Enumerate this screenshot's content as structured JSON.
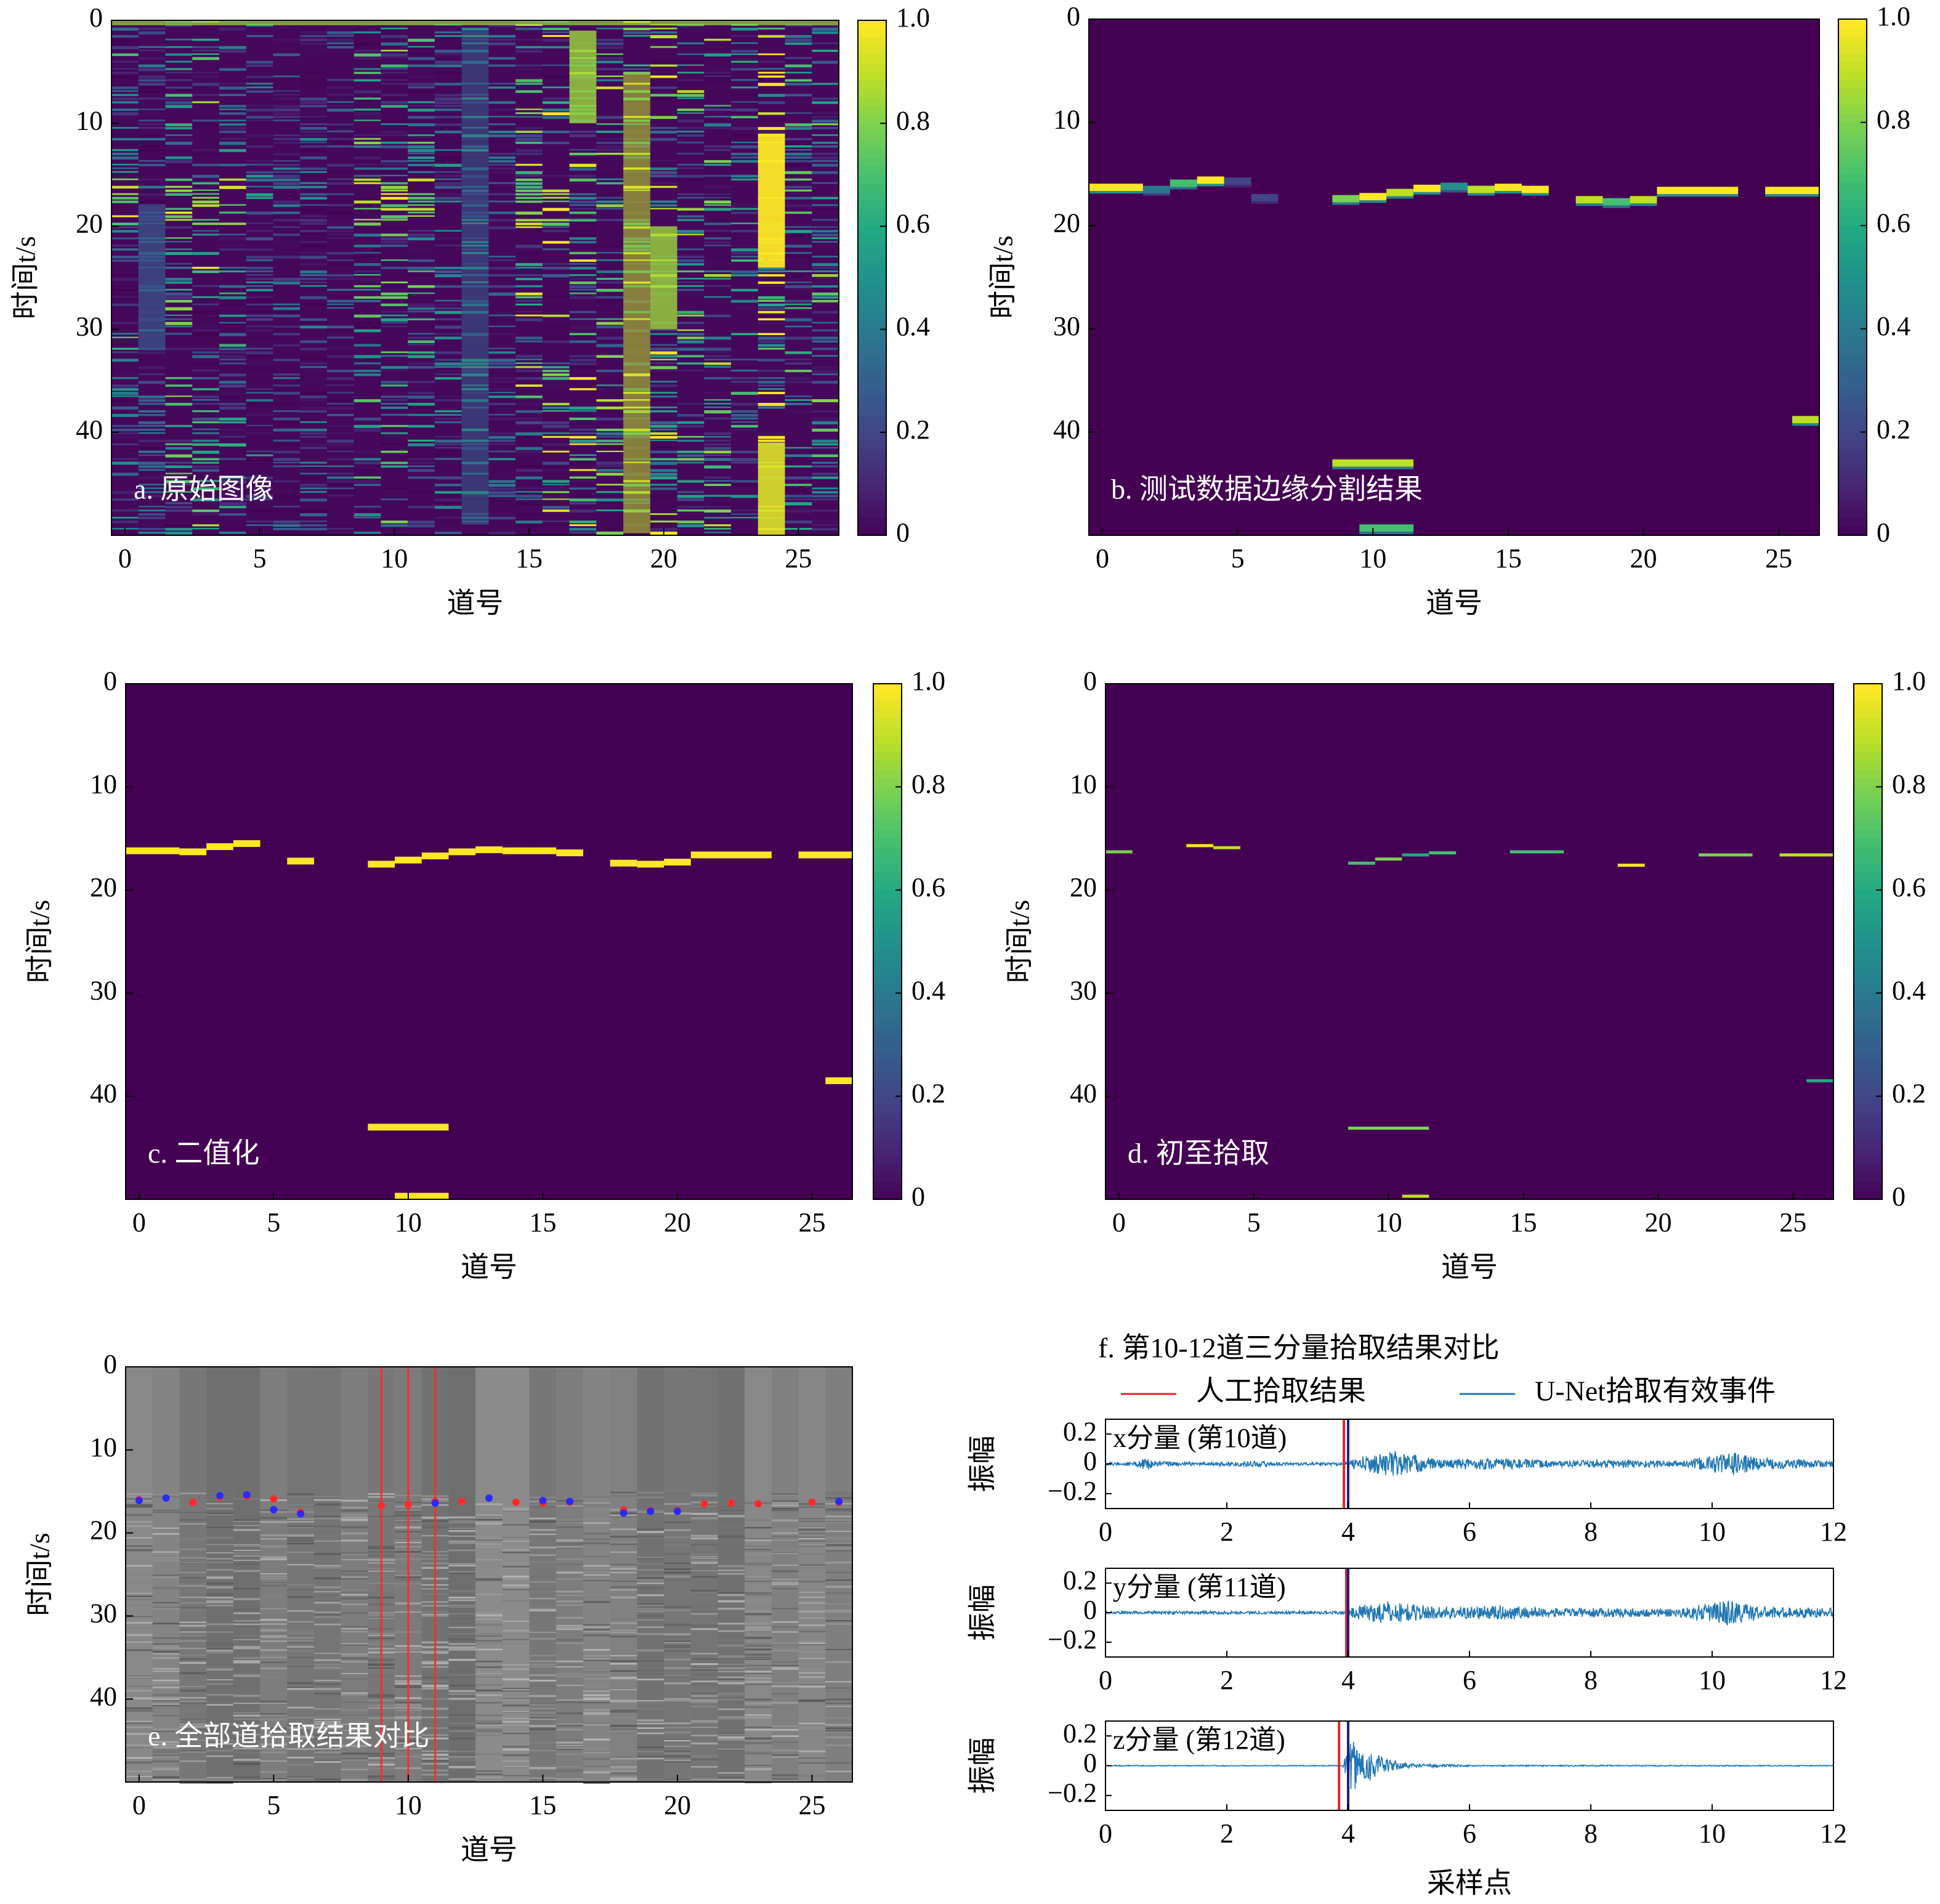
{
  "chart_data": [
    {
      "id": "a",
      "type": "heatmap",
      "panel_label": "a. 原始图像",
      "xlabel": "道号",
      "ylabel": "时间t/s",
      "xlim": [
        -0.5,
        26.5
      ],
      "ylim": [
        50,
        0
      ],
      "xticks": [
        "0",
        "5",
        "10",
        "15",
        "20",
        "25"
      ],
      "yticks": [
        "0",
        "10",
        "20",
        "30",
        "40"
      ],
      "colorbar": {
        "ticks": [
          "0",
          "0.2",
          "0.4",
          "0.6",
          "0.8",
          "1.0"
        ],
        "range": [
          0,
          1
        ],
        "colormap": "viridis"
      },
      "note_visible": "dense normalized waveform amplitudes per trace"
    },
    {
      "id": "b",
      "type": "heatmap",
      "panel_label": "b. 测试数据边缘分割结果",
      "xlabel": "道号",
      "ylabel": "时间t/s",
      "xlim": [
        -0.5,
        26.5
      ],
      "ylim": [
        50,
        0
      ],
      "xticks": [
        "0",
        "5",
        "10",
        "15",
        "20",
        "25"
      ],
      "yticks": [
        "0",
        "10",
        "20",
        "30",
        "40"
      ],
      "colorbar": {
        "ticks": [
          "0",
          "0.2",
          "0.4",
          "0.6",
          "0.8",
          "1.0"
        ],
        "range": [
          0,
          1
        ],
        "colormap": "viridis"
      },
      "segments": [
        {
          "x0": -0.5,
          "x1": 1.5,
          "t": 16.3,
          "v": 1.0
        },
        {
          "x0": 1.5,
          "x1": 2.5,
          "t": 16.5,
          "v": 0.4
        },
        {
          "x0": 2.5,
          "x1": 3.5,
          "t": 15.9,
          "v": 0.7
        },
        {
          "x0": 3.5,
          "x1": 4.5,
          "t": 15.6,
          "v": 1.0
        },
        {
          "x0": 4.5,
          "x1": 5.5,
          "t": 15.7,
          "v": 0.2
        },
        {
          "x0": 5.5,
          "x1": 6.5,
          "t": 17.3,
          "v": 0.2
        },
        {
          "x0": 8.5,
          "x1": 9.5,
          "t": 17.4,
          "v": 0.8
        },
        {
          "x0": 9.5,
          "x1": 10.5,
          "t": 17.2,
          "v": 1.0
        },
        {
          "x0": 10.5,
          "x1": 11.5,
          "t": 16.8,
          "v": 0.9
        },
        {
          "x0": 11.5,
          "x1": 12.5,
          "t": 16.4,
          "v": 1.0
        },
        {
          "x0": 12.5,
          "x1": 13.5,
          "t": 16.2,
          "v": 0.5
        },
        {
          "x0": 13.5,
          "x1": 14.5,
          "t": 16.5,
          "v": 0.9
        },
        {
          "x0": 14.5,
          "x1": 15.5,
          "t": 16.3,
          "v": 1.0
        },
        {
          "x0": 15.5,
          "x1": 16.5,
          "t": 16.5,
          "v": 1.0
        },
        {
          "x0": 17.5,
          "x1": 18.5,
          "t": 17.5,
          "v": 0.9
        },
        {
          "x0": 18.5,
          "x1": 19.5,
          "t": 17.7,
          "v": 0.7
        },
        {
          "x0": 19.5,
          "x1": 20.5,
          "t": 17.5,
          "v": 0.9
        },
        {
          "x0": 20.5,
          "x1": 23.5,
          "t": 16.6,
          "v": 1.0
        },
        {
          "x0": 24.5,
          "x1": 26.5,
          "t": 16.6,
          "v": 1.0
        },
        {
          "x0": 8.5,
          "x1": 11.5,
          "t": 43.0,
          "v": 0.9
        },
        {
          "x0": 9.5,
          "x1": 11.5,
          "t": 49.3,
          "v": 0.7
        },
        {
          "x0": 25.5,
          "x1": 26.5,
          "t": 38.8,
          "v": 0.9
        }
      ]
    },
    {
      "id": "c",
      "type": "heatmap",
      "panel_label": "c. 二值化",
      "xlabel": "道号",
      "ylabel": "时间t/s",
      "xlim": [
        -0.5,
        26.5
      ],
      "ylim": [
        50,
        0
      ],
      "xticks": [
        "0",
        "5",
        "10",
        "15",
        "20",
        "25"
      ],
      "yticks": [
        "0",
        "10",
        "20",
        "30",
        "40"
      ],
      "colorbar": {
        "ticks": [
          "0",
          "0.2",
          "0.4",
          "0.6",
          "0.8",
          "1.0"
        ],
        "range": [
          0,
          1
        ],
        "colormap": "viridis"
      },
      "segments": [
        {
          "x0": -0.5,
          "x1": 1.5,
          "t": 16.2,
          "v": 1
        },
        {
          "x0": 1.5,
          "x1": 2.5,
          "t": 16.3,
          "v": 1
        },
        {
          "x0": 2.5,
          "x1": 3.5,
          "t": 15.8,
          "v": 1
        },
        {
          "x0": 3.5,
          "x1": 4.5,
          "t": 15.5,
          "v": 1
        },
        {
          "x0": 5.5,
          "x1": 6.5,
          "t": 17.2,
          "v": 1
        },
        {
          "x0": 8.5,
          "x1": 9.5,
          "t": 17.5,
          "v": 1
        },
        {
          "x0": 9.5,
          "x1": 10.5,
          "t": 17.1,
          "v": 1
        },
        {
          "x0": 10.5,
          "x1": 11.5,
          "t": 16.7,
          "v": 1
        },
        {
          "x0": 11.5,
          "x1": 12.5,
          "t": 16.3,
          "v": 1
        },
        {
          "x0": 12.5,
          "x1": 13.5,
          "t": 16.1,
          "v": 1
        },
        {
          "x0": 13.5,
          "x1": 14.5,
          "t": 16.2,
          "v": 1
        },
        {
          "x0": 14.5,
          "x1": 15.5,
          "t": 16.2,
          "v": 1
        },
        {
          "x0": 15.5,
          "x1": 16.5,
          "t": 16.4,
          "v": 1
        },
        {
          "x0": 17.5,
          "x1": 18.5,
          "t": 17.4,
          "v": 1
        },
        {
          "x0": 18.5,
          "x1": 19.5,
          "t": 17.5,
          "v": 1
        },
        {
          "x0": 19.5,
          "x1": 20.5,
          "t": 17.3,
          "v": 1
        },
        {
          "x0": 20.5,
          "x1": 23.5,
          "t": 16.6,
          "v": 1
        },
        {
          "x0": 24.5,
          "x1": 26.5,
          "t": 16.6,
          "v": 1
        },
        {
          "x0": 8.5,
          "x1": 11.5,
          "t": 43.0,
          "v": 1
        },
        {
          "x0": 9.5,
          "x1": 11.5,
          "t": 49.7,
          "v": 1
        },
        {
          "x0": 25.5,
          "x1": 26.5,
          "t": 38.5,
          "v": 1
        }
      ]
    },
    {
      "id": "d",
      "type": "heatmap",
      "panel_label": "d. 初至拾取",
      "xlabel": "道号",
      "ylabel": "时间t/s",
      "xlim": [
        -0.5,
        26.5
      ],
      "ylim": [
        50,
        0
      ],
      "xticks": [
        "0",
        "5",
        "10",
        "15",
        "20",
        "25"
      ],
      "yticks": [
        "0",
        "10",
        "20",
        "30",
        "40"
      ],
      "colorbar": {
        "ticks": [
          "0",
          "0.2",
          "0.4",
          "0.6",
          "0.8",
          "1.0"
        ],
        "range": [
          0,
          1
        ],
        "colormap": "viridis"
      },
      "segments": [
        {
          "x0": -0.5,
          "x1": 0.5,
          "t": 16.3,
          "v": 0.8
        },
        {
          "x0": 2.5,
          "x1": 3.5,
          "t": 15.7,
          "v": 1.0
        },
        {
          "x0": 3.5,
          "x1": 4.5,
          "t": 15.9,
          "v": 0.9
        },
        {
          "x0": 8.5,
          "x1": 9.5,
          "t": 17.4,
          "v": 0.7
        },
        {
          "x0": 9.5,
          "x1": 10.5,
          "t": 17.0,
          "v": 0.8
        },
        {
          "x0": 10.5,
          "x1": 11.5,
          "t": 16.6,
          "v": 0.6
        },
        {
          "x0": 11.5,
          "x1": 12.5,
          "t": 16.4,
          "v": 0.7
        },
        {
          "x0": 14.5,
          "x1": 16.5,
          "t": 16.3,
          "v": 0.7
        },
        {
          "x0": 18.5,
          "x1": 19.5,
          "t": 17.6,
          "v": 1.0
        },
        {
          "x0": 21.5,
          "x1": 23.5,
          "t": 16.6,
          "v": 0.8
        },
        {
          "x0": 24.5,
          "x1": 26.5,
          "t": 16.6,
          "v": 0.9
        },
        {
          "x0": 8.5,
          "x1": 11.5,
          "t": 43.1,
          "v": 0.8
        },
        {
          "x0": 10.5,
          "x1": 11.5,
          "t": 49.7,
          "v": 0.9
        },
        {
          "x0": 25.5,
          "x1": 26.5,
          "t": 38.5,
          "v": 0.6
        }
      ]
    },
    {
      "id": "e",
      "type": "scatter",
      "panel_label": "e. 全部道拾取结果对比",
      "xlabel": "道号",
      "ylabel": "时间t/s",
      "xlim": [
        -0.5,
        26.5
      ],
      "ylim": [
        50,
        0
      ],
      "xticks": [
        "0",
        "5",
        "10",
        "15",
        "20",
        "25"
      ],
      "yticks": [
        "0",
        "10",
        "20",
        "30",
        "40"
      ],
      "background": "grayscale seismic section",
      "vertical_lines": [
        9,
        10,
        11
      ],
      "series": [
        {
          "color": "#ff2a2a",
          "x": [
            0,
            2,
            3,
            4,
            5,
            6,
            9,
            10,
            11,
            12,
            14,
            15,
            16,
            18,
            19,
            20,
            21,
            22,
            23,
            25,
            26
          ],
          "y": [
            16.0,
            16.3,
            15.7,
            15.6,
            15.9,
            17.5,
            16.7,
            16.6,
            16.2,
            16.2,
            16.3,
            16.4,
            16.3,
            17.2,
            17.3,
            17.3,
            16.5,
            16.4,
            16.5,
            16.3,
            16.3
          ]
        },
        {
          "color": "#2a2aff",
          "x": [
            0,
            1,
            3,
            4,
            5,
            6,
            11,
            13,
            15,
            16,
            18,
            19,
            20,
            26
          ],
          "y": [
            16.1,
            15.8,
            15.5,
            15.4,
            17.2,
            17.7,
            16.4,
            15.8,
            16.1,
            16.2,
            17.6,
            17.4,
            17.4,
            16.2
          ]
        }
      ]
    },
    {
      "id": "f",
      "type": "line",
      "title": "f. 第10-12道三分量拾取结果对比",
      "legend": [
        {
          "label": "人工拾取结果",
          "color": "#e8202a"
        },
        {
          "label": "U-Net拾取有效事件",
          "color": "#1f77b4"
        }
      ],
      "xlabel": "采样点",
      "subplots": [
        {
          "label": "x分量 (第10道)",
          "ylabel": "振幅",
          "xlim": [
            0,
            12
          ],
          "ylim": [
            -0.3,
            0.3
          ],
          "xticks": [
            "0",
            "2",
            "4",
            "6",
            "8",
            "10",
            "12"
          ],
          "yticks": [
            "0.2",
            "0",
            "−0.2"
          ],
          "manual_pick": 3.93,
          "unet_pick": 4.0,
          "envelope": [
            [
              0,
              0.01
            ],
            [
              0.5,
              0.012
            ],
            [
              0.65,
              0.05
            ],
            [
              0.8,
              0.02
            ],
            [
              1.5,
              0.01
            ],
            [
              2.5,
              0.02
            ],
            [
              3,
              0.01
            ],
            [
              4,
              0.01
            ],
            [
              4.1,
              0.04
            ],
            [
              4.8,
              0.09
            ],
            [
              5.5,
              0.03
            ],
            [
              6.5,
              0.04
            ],
            [
              7.5,
              0.02
            ],
            [
              8.5,
              0.03
            ],
            [
              9.5,
              0.02
            ],
            [
              10.3,
              0.08
            ],
            [
              10.8,
              0.04
            ],
            [
              12,
              0.02
            ]
          ]
        },
        {
          "label": "y分量 (第11道)",
          "ylabel": "振幅",
          "xlim": [
            0,
            12
          ],
          "ylim": [
            -0.3,
            0.3
          ],
          "xticks": [
            "0",
            "2",
            "4",
            "6",
            "8",
            "10",
            "12"
          ],
          "yticks": [
            "0.2",
            "0",
            "−0.2"
          ],
          "manual_pick": 3.97,
          "unet_pick": 4.0,
          "envelope": [
            [
              0,
              0.01
            ],
            [
              3.9,
              0.01
            ],
            [
              4.1,
              0.04
            ],
            [
              4.6,
              0.08
            ],
            [
              5.5,
              0.04
            ],
            [
              6.5,
              0.05
            ],
            [
              7.5,
              0.03
            ],
            [
              8.5,
              0.03
            ],
            [
              9.5,
              0.03
            ],
            [
              10.3,
              0.09
            ],
            [
              10.8,
              0.04
            ],
            [
              12,
              0.03
            ]
          ]
        },
        {
          "label": "z分量 (第12道)",
          "ylabel": "振幅",
          "xlim": [
            0,
            12
          ],
          "ylim": [
            -0.3,
            0.3
          ],
          "xticks": [
            "0",
            "2",
            "4",
            "6",
            "8",
            "10",
            "12"
          ],
          "yticks": [
            "0.2",
            "0",
            "−0.2"
          ],
          "manual_pick": 3.85,
          "unet_pick": 4.0,
          "envelope": [
            [
              0,
              0.003
            ],
            [
              3.9,
              0.003
            ],
            [
              4.05,
              0.17
            ],
            [
              4.3,
              0.12
            ],
            [
              4.6,
              0.05
            ],
            [
              5.0,
              0.015
            ],
            [
              6,
              0.005
            ],
            [
              12,
              0.003
            ]
          ]
        }
      ]
    }
  ]
}
